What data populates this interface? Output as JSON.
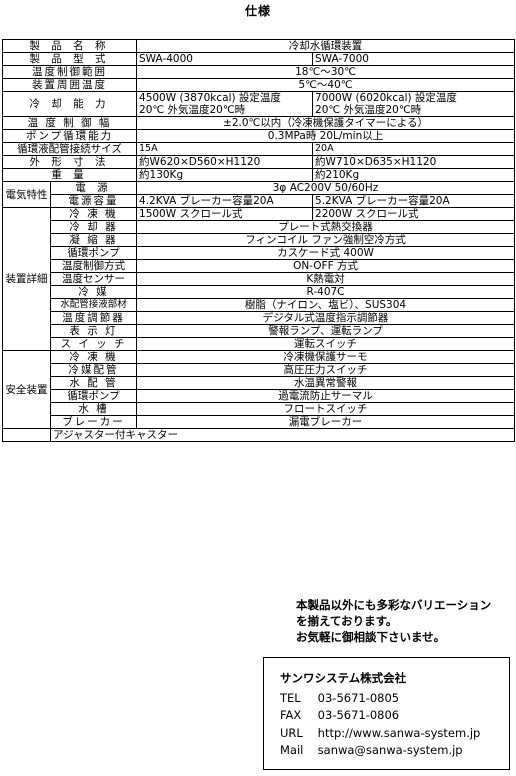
{
  "title": "仕様",
  "spec": {
    "product_name": {
      "label": "製 品 名 称",
      "value": "冷却水循環装置"
    },
    "model": {
      "label": "製 品 型 式",
      "a": "SWA-4000",
      "b": "SWA-7000"
    },
    "temp_range": {
      "label": "温度制御範囲",
      "value": "18℃～30℃"
    },
    "ambient": {
      "label": "装置周囲温度",
      "value": "5℃～40℃"
    },
    "cooling": {
      "label": "冷 却 能 力",
      "a1": "4500W (3870kcal) 設定温度",
      "a2": "20℃  外気温度20℃時",
      "b1": "7000W (6020kcal) 設定温度",
      "b2": "20℃  外気温度20℃時"
    },
    "temp_width": {
      "label": "温 度 制 御 幅",
      "value": "±2.0℃以内（冷凍機保護タイマーによる）"
    },
    "pump_capacity": {
      "label": "ポンプ循環能力",
      "value": "0.3MPa時  20L/min以上"
    },
    "pipe_size": {
      "label": "循環液配管接続サイズ",
      "a": "15A",
      "b": "20A"
    },
    "dimensions": {
      "label": "外 形 寸 法",
      "a": "約W620×D560×H1120",
      "b": "約W710×D635×H1120"
    },
    "weight": {
      "label": "重     量",
      "a": "約130Kg",
      "b": "約210Kg"
    },
    "electrical": {
      "group": "電気特性",
      "power": {
        "label": "電   源",
        "value": "3φ  AC200V  50/60Hz"
      },
      "capacity": {
        "label": "電源容量",
        "a": "4.2KVA  ブレーカー容量20A",
        "b": "5.2KVA  ブレーカー容量20A"
      }
    },
    "details": {
      "group": "装置詳細",
      "compressor": {
        "label": "冷 凍 機",
        "a": "1500W  スクロール式",
        "b": "2200W  スクロール式"
      },
      "cooler": {
        "label": "冷 却 器",
        "value": "プレート式熱交換器"
      },
      "condenser": {
        "label": "凝 縮 器",
        "value": "フィンコイル  ファン強制空冷方式"
      },
      "pump": {
        "label": "循環ポンプ",
        "value": "カスケード式  400W"
      },
      "control_method": {
        "label": "温度制御方式",
        "value": "ON-OFF  方式"
      },
      "sensor": {
        "label": "温度センサー",
        "value": "K熱電対"
      },
      "refrigerant": {
        "label": "冷   媒",
        "value": "R-407C"
      },
      "wetted": {
        "label": "水配管接液部材",
        "value": "樹脂（ナイロン、塩ビ）、SUS304"
      },
      "controller": {
        "label": "温度調節器",
        "value": "デジタル式温度指示調節器"
      },
      "lamp": {
        "label": "表 示 灯",
        "value": "警報ランプ、運転ランプ"
      },
      "switch": {
        "label": "ス イ ッ チ",
        "value": "運転スイッチ"
      }
    },
    "safety": {
      "group": "安全装置",
      "compressor": {
        "label": "冷 凍 機",
        "value": "冷凍機保護サーモ"
      },
      "refrig_pipe": {
        "label": "冷媒配管",
        "value": "高圧圧力スイッチ"
      },
      "water_pipe": {
        "label": "水 配 管",
        "value": "水温異常警報"
      },
      "pump": {
        "label": "循環ポンプ",
        "value": "過電流防止サーマル"
      },
      "tank": {
        "label": "水  槽",
        "value": "フロートスイッチ"
      },
      "breaker": {
        "label": "ブレーカー",
        "value": "漏電ブレーカー"
      }
    },
    "footer": "アジャスター付キャスター"
  },
  "notice": {
    "line1": "本製品以外にも多彩なバリエーション",
    "line2": "を揃えております。",
    "line3": "お気軽に御相談下さいませ。"
  },
  "contact": {
    "company": "サンワシステム株式会社",
    "tel_label": "TEL",
    "tel": "03-5671-0805",
    "fax_label": "FAX",
    "fax": "03-5671-0806",
    "url_label": "URL",
    "url": "http://www.sanwa-system.jp",
    "mail_label": "Mail",
    "mail": "sanwa@sanwa-system.jp"
  }
}
